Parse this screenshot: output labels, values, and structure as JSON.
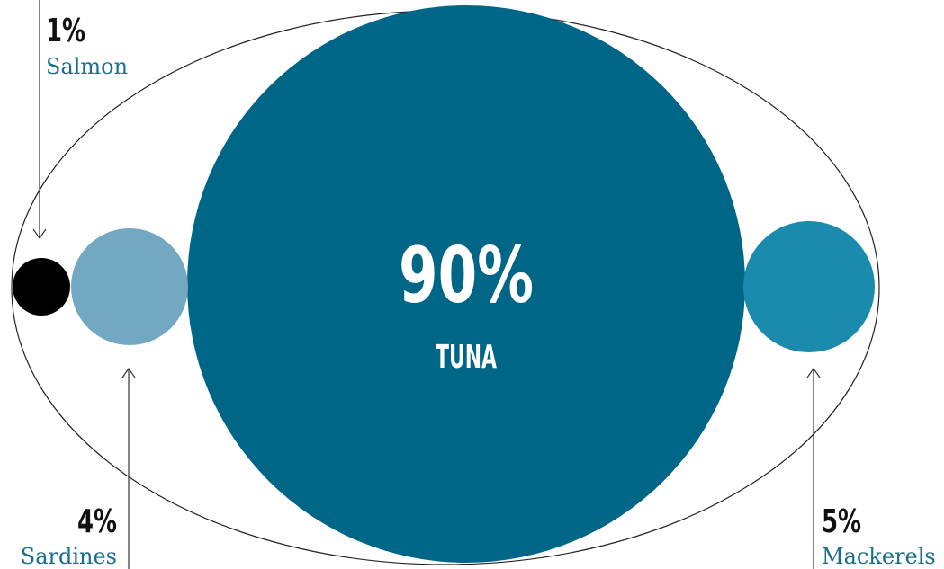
{
  "chart_data": {
    "type": "bubble",
    "title": "",
    "series": [
      {
        "name": "Salmon",
        "value": 1,
        "value_label": "1%",
        "color": "#000000"
      },
      {
        "name": "Sardines",
        "value": 4,
        "value_label": "4%",
        "color": "#72a8c2"
      },
      {
        "name": "Tuna",
        "value": 90,
        "value_label": "90%",
        "label": "TUNA",
        "color": "#006688"
      },
      {
        "name": "Mackerels",
        "value": 5,
        "value_label": "5%",
        "color": "#1a8aad"
      }
    ],
    "label_color": "#1a6f8f",
    "outline_color": "#222222",
    "arrow_color": "#333333"
  }
}
